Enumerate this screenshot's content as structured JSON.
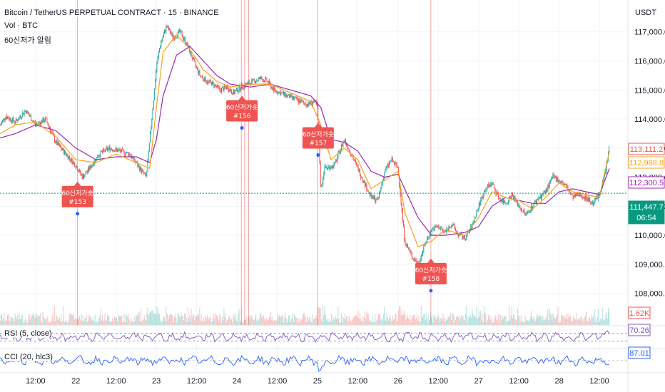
{
  "header": {
    "symbol_line": "Bitcoin / TetherUS PERPETUAL CONTRACT · 15 · BINANCE",
    "vol_line": "Vol · BTC",
    "indicator_line": "60신저가 알림",
    "rsi_label": "RSI (5, close)",
    "cci_label": "CCI (20, hlc3)",
    "currency": "USDT"
  },
  "colors": {
    "up": "#26a69a",
    "down": "#ef5350",
    "ma_orange": "#f7a21b",
    "ma_purple": "#9c27b0",
    "rsi_line": "#7e57c2",
    "cci_line": "#2962ff",
    "marker": "#f05350",
    "marker_dot": "#2962ff",
    "current_price": "#089981"
  },
  "price_badges": [
    {
      "value": "113,111.2",
      "color": "#ef5350",
      "filled": false
    },
    {
      "value": "112,988.8",
      "color": "#f7a21b",
      "filled": false
    },
    {
      "value": "112,300.5",
      "color": "#9c27b0",
      "filled": false
    },
    {
      "value": "111,447.7",
      "color": "#089981",
      "filled": true,
      "sub": "06:54"
    }
  ],
  "volume_badge": "1.62K",
  "rsi_value": "70.26",
  "cci_value": "87.01",
  "chart_data": {
    "type": "candlestick",
    "y_ticks": [
      108000,
      109000,
      110000,
      111000,
      112000,
      113000,
      114000,
      115000,
      116000,
      117000
    ],
    "y_tick_labels": [
      "108,000.0",
      "109,000.0",
      "110,000.0",
      "111,000.0",
      "112,000.0",
      "113,000.0",
      "114,000.0",
      "115,000.0",
      "116,000.0",
      "117,000.0"
    ],
    "ylim": [
      107600,
      117900
    ],
    "x_labels": [
      "12:00",
      "22",
      "12:00",
      "23",
      "12:00",
      "24",
      "12:00",
      "25",
      "12:00",
      "26",
      "12:00",
      "27",
      "12:00",
      "28",
      "12:00"
    ],
    "x_label_hours": [
      12,
      24,
      36,
      48,
      60,
      72,
      84,
      96,
      108,
      120,
      132,
      144,
      156,
      168,
      180
    ],
    "x_range_hours": [
      1.4,
      188.5
    ],
    "price_path": [
      [
        0,
        113500
      ],
      [
        3,
        114100
      ],
      [
        6,
        113900
      ],
      [
        9,
        114300
      ],
      [
        12,
        113800
      ],
      [
        15,
        114000
      ],
      [
        18,
        113200
      ],
      [
        21,
        112800
      ],
      [
        24,
        112400
      ],
      [
        26,
        112000
      ],
      [
        28,
        112300
      ],
      [
        31,
        112800
      ],
      [
        34,
        113000
      ],
      [
        37,
        112900
      ],
      [
        40,
        112800
      ],
      [
        43,
        112300
      ],
      [
        45,
        112000
      ],
      [
        47,
        114500
      ],
      [
        48,
        115800
      ],
      [
        49,
        116500
      ],
      [
        51,
        117200
      ],
      [
        53,
        116800
      ],
      [
        55,
        117000
      ],
      [
        57,
        116600
      ],
      [
        59,
        116000
      ],
      [
        61,
        115500
      ],
      [
        63,
        115300
      ],
      [
        65,
        115200
      ],
      [
        67,
        115000
      ],
      [
        69,
        115100
      ],
      [
        71,
        114900
      ],
      [
        73,
        115100
      ],
      [
        75,
        115200
      ],
      [
        77,
        115300
      ],
      [
        79,
        115400
      ],
      [
        81,
        115300
      ],
      [
        83,
        115000
      ],
      [
        85,
        114900
      ],
      [
        87,
        114800
      ],
      [
        89,
        114700
      ],
      [
        91,
        114600
      ],
      [
        93,
        114500
      ],
      [
        95,
        114600
      ],
      [
        96,
        114400
      ],
      [
        97,
        111500
      ],
      [
        98,
        112300
      ],
      [
        101,
        112400
      ],
      [
        103,
        113000
      ],
      [
        104,
        113300
      ],
      [
        106,
        112800
      ],
      [
        108,
        112300
      ],
      [
        110,
        111800
      ],
      [
        112,
        111300
      ],
      [
        114,
        111200
      ],
      [
        116,
        112200
      ],
      [
        118,
        112600
      ],
      [
        120,
        112300
      ],
      [
        121,
        111000
      ],
      [
        122,
        109800
      ],
      [
        124,
        109300
      ],
      [
        126,
        109000
      ],
      [
        128,
        109700
      ],
      [
        130,
        110200
      ],
      [
        132,
        110300
      ],
      [
        134,
        110100
      ],
      [
        136,
        110400
      ],
      [
        138,
        110000
      ],
      [
        140,
        109900
      ],
      [
        142,
        110300
      ],
      [
        144,
        111000
      ],
      [
        146,
        111600
      ],
      [
        148,
        111800
      ],
      [
        150,
        111300
      ],
      [
        152,
        111100
      ],
      [
        154,
        111400
      ],
      [
        156,
        111000
      ],
      [
        158,
        110700
      ],
      [
        160,
        111000
      ],
      [
        162,
        111300
      ],
      [
        164,
        111500
      ],
      [
        166,
        112000
      ],
      [
        168,
        111900
      ],
      [
        170,
        111700
      ],
      [
        172,
        111300
      ],
      [
        174,
        111400
      ],
      [
        176,
        111300
      ],
      [
        178,
        111100
      ],
      [
        180,
        111400
      ],
      [
        182,
        112300
      ],
      [
        183,
        113100
      ]
    ],
    "ma_fast_path": [
      [
        0,
        113400
      ],
      [
        6,
        113800
      ],
      [
        12,
        113900
      ],
      [
        18,
        113400
      ],
      [
        24,
        112600
      ],
      [
        30,
        112500
      ],
      [
        36,
        112800
      ],
      [
        42,
        112500
      ],
      [
        46,
        112300
      ],
      [
        48,
        114400
      ],
      [
        50,
        116300
      ],
      [
        54,
        116900
      ],
      [
        58,
        116400
      ],
      [
        62,
        115700
      ],
      [
        66,
        115300
      ],
      [
        70,
        115100
      ],
      [
        76,
        115200
      ],
      [
        82,
        115200
      ],
      [
        88,
        114900
      ],
      [
        94,
        114600
      ],
      [
        97,
        113800
      ],
      [
        100,
        112600
      ],
      [
        104,
        113000
      ],
      [
        108,
        112600
      ],
      [
        112,
        111600
      ],
      [
        116,
        111900
      ],
      [
        120,
        112200
      ],
      [
        122,
        110800
      ],
      [
        126,
        109600
      ],
      [
        130,
        109800
      ],
      [
        134,
        110200
      ],
      [
        140,
        110000
      ],
      [
        144,
        110600
      ],
      [
        148,
        111500
      ],
      [
        152,
        111300
      ],
      [
        156,
        111200
      ],
      [
        160,
        110900
      ],
      [
        164,
        111300
      ],
      [
        168,
        111800
      ],
      [
        172,
        111500
      ],
      [
        176,
        111400
      ],
      [
        180,
        111300
      ],
      [
        183,
        112900
      ]
    ],
    "ma_slow_path": [
      [
        0,
        113300
      ],
      [
        6,
        113500
      ],
      [
        12,
        113800
      ],
      [
        18,
        113600
      ],
      [
        24,
        113000
      ],
      [
        30,
        112600
      ],
      [
        36,
        112700
      ],
      [
        42,
        112700
      ],
      [
        46,
        112500
      ],
      [
        48,
        113300
      ],
      [
        50,
        114800
      ],
      [
        54,
        116200
      ],
      [
        58,
        116500
      ],
      [
        62,
        116000
      ],
      [
        66,
        115500
      ],
      [
        70,
        115200
      ],
      [
        76,
        115100
      ],
      [
        82,
        115200
      ],
      [
        88,
        115000
      ],
      [
        94,
        114800
      ],
      [
        97,
        114400
      ],
      [
        100,
        113300
      ],
      [
        104,
        113200
      ],
      [
        108,
        112900
      ],
      [
        112,
        112200
      ],
      [
        116,
        112000
      ],
      [
        120,
        112100
      ],
      [
        122,
        111600
      ],
      [
        126,
        110600
      ],
      [
        130,
        110000
      ],
      [
        134,
        110000
      ],
      [
        140,
        110100
      ],
      [
        144,
        110300
      ],
      [
        148,
        111000
      ],
      [
        152,
        111300
      ],
      [
        156,
        111200
      ],
      [
        160,
        111100
      ],
      [
        164,
        111100
      ],
      [
        168,
        111500
      ],
      [
        172,
        111600
      ],
      [
        176,
        111500
      ],
      [
        180,
        111400
      ],
      [
        183,
        112300
      ]
    ],
    "current_price": 111447.7,
    "event_lines_hours": [
      24.5,
      73.3,
      74.3,
      75.5,
      96,
      129.8
    ],
    "markers": [
      {
        "label": "60신저가숏",
        "id": "#153",
        "t": 24.5,
        "price": 111700
      },
      {
        "label": "60신저가숏",
        "id": "#156",
        "t": 73.5,
        "price": 114650
      },
      {
        "label": "60신저가숏",
        "id": "#157",
        "t": 96.2,
        "price": 113720
      },
      {
        "label": "60신저가숏",
        "id": "#158",
        "t": 129.8,
        "price": 109050
      }
    ],
    "rsi_ylim": [
      0,
      100
    ],
    "rsi_dashed": [
      70,
      30
    ],
    "cci_ylim": [
      -200,
      200
    ]
  }
}
